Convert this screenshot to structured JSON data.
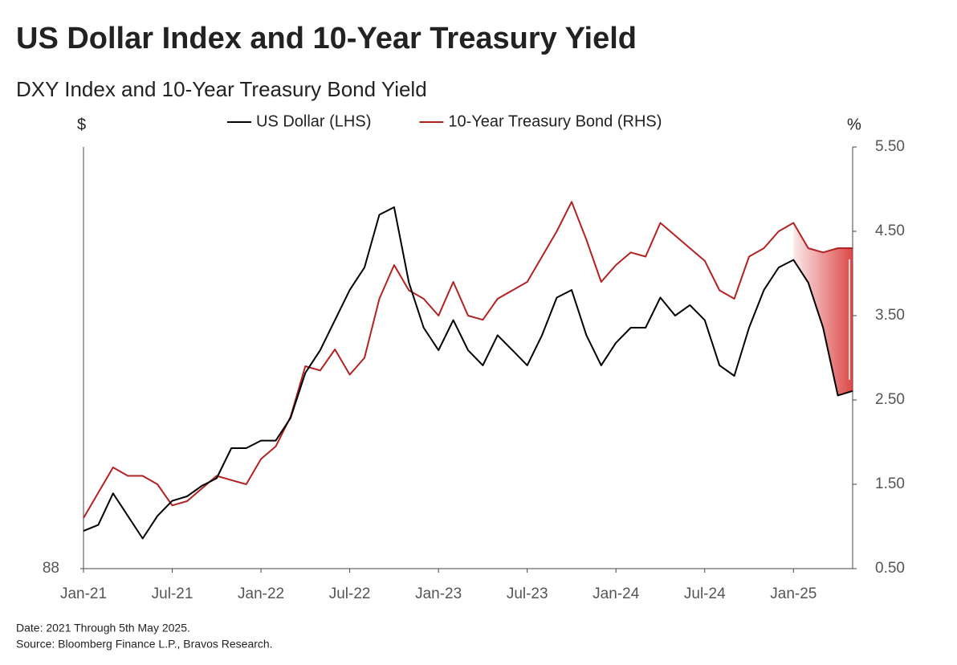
{
  "chart_data": {
    "type": "line",
    "title": "US Dollar Index and 10-Year Treasury Yield",
    "subtitle": "DXY Index and 10-Year Treasury Bond Yield",
    "y_unit": "$",
    "y2_unit": "%",
    "x": [
      "2021-01",
      "2021-02",
      "2021-03",
      "2021-04",
      "2021-05",
      "2021-06",
      "2021-07",
      "2021-08",
      "2021-09",
      "2021-10",
      "2021-11",
      "2021-12",
      "2022-01",
      "2022-02",
      "2022-03",
      "2022-04",
      "2022-05",
      "2022-06",
      "2022-07",
      "2022-08",
      "2022-09",
      "2022-10",
      "2022-11",
      "2022-12",
      "2023-01",
      "2023-02",
      "2023-03",
      "2023-04",
      "2023-05",
      "2023-06",
      "2023-07",
      "2023-08",
      "2023-09",
      "2023-10",
      "2023-11",
      "2023-12",
      "2024-01",
      "2024-02",
      "2024-03",
      "2024-04",
      "2024-05",
      "2024-06",
      "2024-07",
      "2024-08",
      "2024-09",
      "2024-10",
      "2024-11",
      "2024-12",
      "2025-01",
      "2025-02",
      "2025-03",
      "2025-04",
      "2025-05"
    ],
    "series": [
      {
        "name": "US Dollar (LHS)",
        "color": "#000000",
        "values": [
          90.5,
          90.9,
          93,
          91.5,
          90,
          91.5,
          92.5,
          92.8,
          93.5,
          94,
          96,
          96,
          96.5,
          96.5,
          98,
          101,
          102.5,
          104.5,
          106.5,
          108,
          111.5,
          112,
          107,
          104,
          102.5,
          104.5,
          102.5,
          101.5,
          103.5,
          102.5,
          101.5,
          103.5,
          106,
          106.5,
          103.5,
          101.5,
          103,
          104,
          104,
          106,
          104.8,
          105.5,
          104.5,
          101.5,
          100.8,
          104,
          106.5,
          108,
          108.5,
          107,
          104,
          99.5,
          99.8
        ]
      },
      {
        "name": "10-Year Treasury Bond (RHS)",
        "color": "#b22222",
        "axis": "y2",
        "values": [
          1.1,
          1.4,
          1.7,
          1.6,
          1.6,
          1.5,
          1.25,
          1.3,
          1.45,
          1.6,
          1.55,
          1.5,
          1.8,
          1.95,
          2.3,
          2.9,
          2.85,
          3.1,
          2.8,
          3.0,
          3.7,
          4.1,
          3.8,
          3.7,
          3.5,
          3.9,
          3.5,
          3.45,
          3.7,
          3.8,
          3.9,
          4.2,
          4.5,
          4.85,
          4.4,
          3.9,
          4.1,
          4.25,
          4.2,
          4.6,
          4.45,
          4.3,
          4.15,
          3.8,
          3.7,
          4.2,
          4.3,
          4.5,
          4.6,
          4.3,
          4.25,
          4.3,
          4.3
        ]
      }
    ],
    "xlim": [
      "2021-01",
      "2025-05"
    ],
    "xticks": [
      {
        "value": "2021-01",
        "label": "Jan-21"
      },
      {
        "value": "2021-07",
        "label": "Jul-21"
      },
      {
        "value": "2022-01",
        "label": "Jan-22"
      },
      {
        "value": "2022-07",
        "label": "Jul-22"
      },
      {
        "value": "2023-01",
        "label": "Jan-23"
      },
      {
        "value": "2023-07",
        "label": "Jul-23"
      },
      {
        "value": "2024-01",
        "label": "Jan-24"
      },
      {
        "value": "2024-07",
        "label": "Jul-24"
      },
      {
        "value": "2025-01",
        "label": "Jan-25"
      }
    ],
    "ylim": [
      88,
      116
    ],
    "yticks": [
      88
    ],
    "y2lim": [
      0.5,
      5.5
    ],
    "y2ticks": [
      {
        "value": 0.5,
        "label": "0.50"
      },
      {
        "value": 1.5,
        "label": "1.50"
      },
      {
        "value": 2.5,
        "label": "2.50"
      },
      {
        "value": 3.5,
        "label": "3.50"
      },
      {
        "value": 4.5,
        "label": "4.50"
      },
      {
        "value": 5.5,
        "label": "5.50"
      }
    ],
    "notes": [
      "Date: 2021 Through 5th May 2025.",
      "Source: Bloomberg Finance L.P., Bravos Research."
    ]
  }
}
